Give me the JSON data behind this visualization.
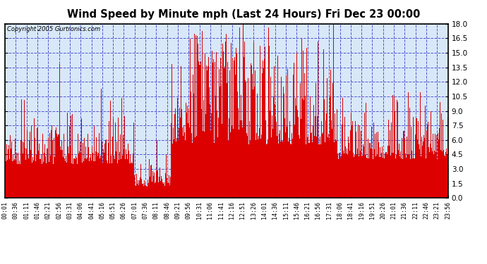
{
  "title": "Wind Speed by Minute mph (Last 24 Hours) Fri Dec 23 00:00",
  "copyright_text": "Copyright 2005 Gurtronics.com",
  "background_color": "#ffffff",
  "plot_bg_color": "#d8e8f8",
  "bar_color": "#dd0000",
  "grid_color": "#4444cc",
  "y_min": 0.0,
  "y_max": 18.0,
  "y_ticks": [
    0.0,
    1.5,
    3.0,
    4.5,
    6.0,
    7.5,
    9.0,
    10.5,
    12.0,
    13.5,
    15.0,
    16.5,
    18.0
  ],
  "x_tick_labels": [
    "00:01",
    "00:36",
    "01:11",
    "01:46",
    "02:21",
    "02:56",
    "03:31",
    "04:06",
    "04:41",
    "05:16",
    "05:51",
    "06:26",
    "07:01",
    "07:36",
    "08:11",
    "08:46",
    "09:21",
    "09:56",
    "10:31",
    "11:06",
    "11:41",
    "12:16",
    "12:51",
    "13:26",
    "14:01",
    "14:36",
    "15:11",
    "15:46",
    "16:21",
    "16:56",
    "17:31",
    "18:06",
    "18:41",
    "19:16",
    "19:51",
    "20:26",
    "21:01",
    "21:36",
    "22:11",
    "22:46",
    "23:21",
    "23:56"
  ],
  "num_bars": 1440,
  "seed": 17
}
